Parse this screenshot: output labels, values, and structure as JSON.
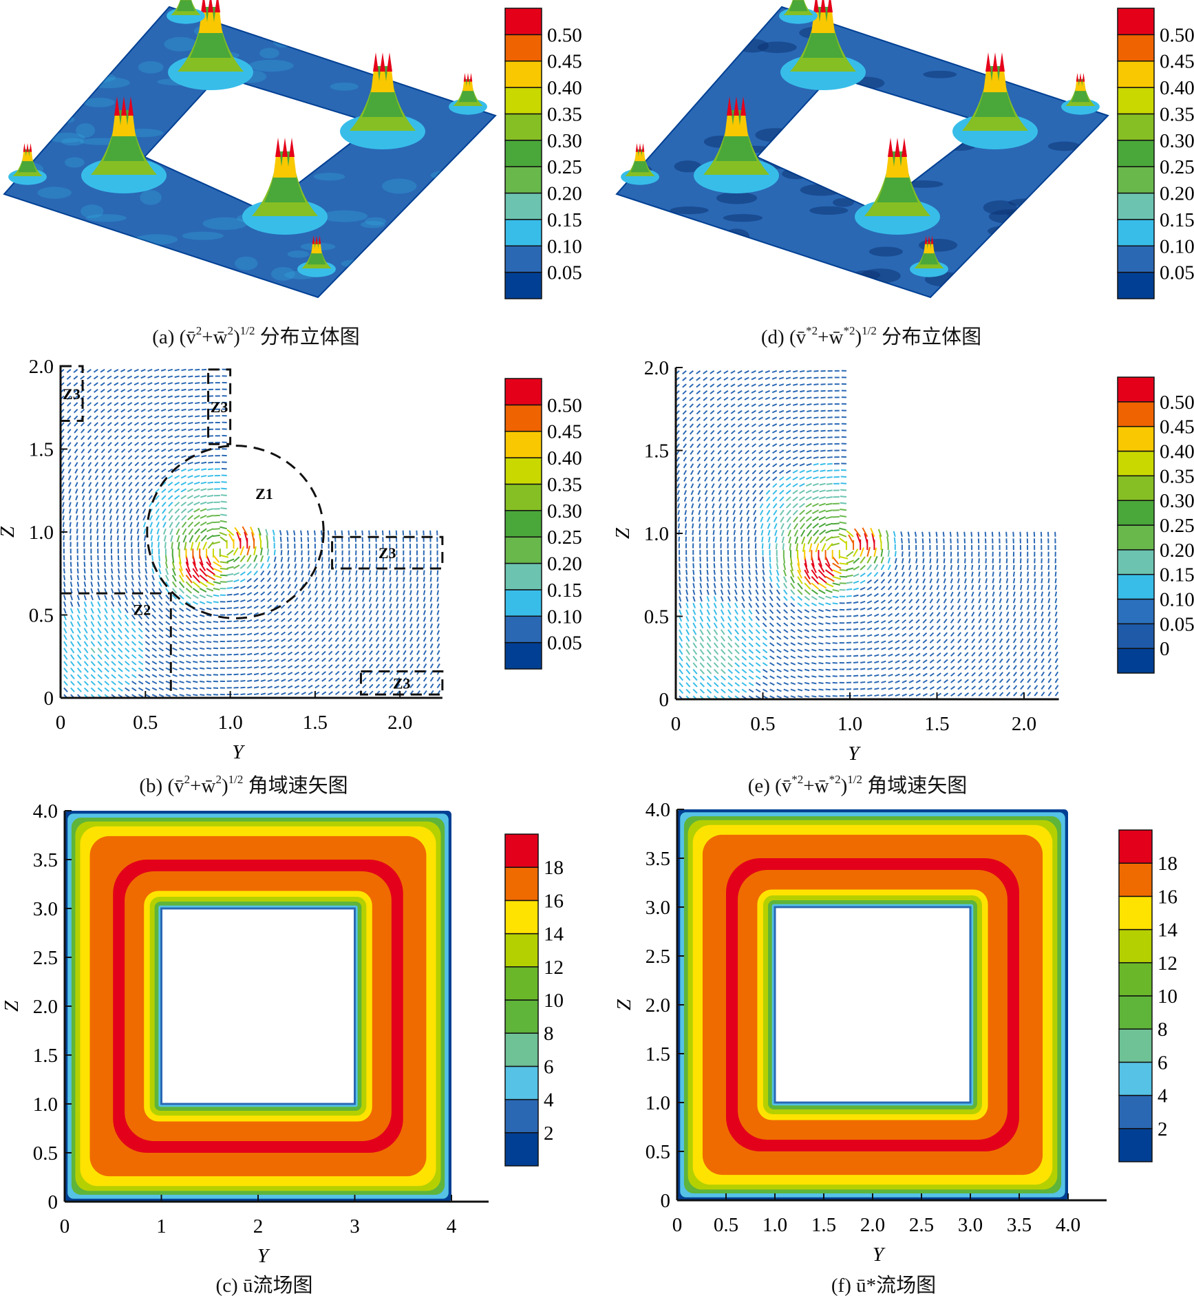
{
  "palette_small": [
    "#003f93",
    "#2a68b4",
    "#38bde9",
    "#6cc4b0",
    "#69b84c",
    "#4aa73a",
    "#86bf24",
    "#c9d900",
    "#f9c800",
    "#ef6300",
    "#e5001a"
  ],
  "palette_e": [
    "#003f93",
    "#1f5aa8",
    "#2a70bc",
    "#38bde9",
    "#6cc4b0",
    "#69b84c",
    "#4aa73a",
    "#86bf24",
    "#c9d900",
    "#f9c800",
    "#ef6300",
    "#e5001a"
  ],
  "palette_u": [
    "#003f93",
    "#2a68b4",
    "#55c2e6",
    "#6fc196",
    "#5fb43a",
    "#6ab82a",
    "#b5d000",
    "#ffe300",
    "#ef6b00",
    "#e2001a"
  ],
  "captions": [
    {
      "id": "a",
      "parts": [
        {
          "t": "(a) (v̄"
        },
        {
          "s": "2"
        },
        {
          "t": "+w̄"
        },
        {
          "s": "2"
        },
        {
          "t": ")"
        },
        {
          "s": "1/2"
        },
        {
          "t": " 分布立体图"
        }
      ]
    },
    {
      "id": "d",
      "parts": [
        {
          "t": "(d) (v̄"
        },
        {
          "s": "*2"
        },
        {
          "t": "+w̄"
        },
        {
          "s": "*2"
        },
        {
          "t": ")"
        },
        {
          "s": "1/2"
        },
        {
          "t": " 分布立体图"
        }
      ]
    },
    {
      "id": "b",
      "parts": [
        {
          "t": "(b) (v̄"
        },
        {
          "s": "2"
        },
        {
          "t": "+w̄"
        },
        {
          "s": "2"
        },
        {
          "t": ")"
        },
        {
          "s": "1/2"
        },
        {
          "t": " 角域速矢图"
        }
      ]
    },
    {
      "id": "e",
      "parts": [
        {
          "t": "(e) (v̄"
        },
        {
          "s": "*2"
        },
        {
          "t": "+w̄"
        },
        {
          "s": "*2"
        },
        {
          "t": ")"
        },
        {
          "s": "1/2"
        },
        {
          "t": " 角域速矢图"
        }
      ]
    },
    {
      "id": "c",
      "parts": [
        {
          "t": "(c) ū流场图"
        }
      ]
    },
    {
      "id": "f",
      "parts": [
        {
          "t": "(f) ū"
        },
        {
          "s": "*"
        },
        {
          "t": "流场图"
        }
      ]
    }
  ],
  "chart_data": [
    {
      "id": "a",
      "type": "surface3d",
      "title": "(v̄²+w̄²)^1/2 分布立体图",
      "colorbar": [
        "0.50",
        "0.45",
        "0.40",
        "0.35",
        "0.30",
        "0.25",
        "0.20",
        "0.15",
        "0.10",
        "0.05"
      ]
    },
    {
      "id": "d",
      "type": "surface3d",
      "title": "(v̄*²+w̄*²)^1/2 分布立体图",
      "colorbar": [
        "0.50",
        "0.45",
        "0.40",
        "0.35",
        "0.30",
        "0.25",
        "0.20",
        "0.15",
        "0.10",
        "0.05"
      ]
    },
    {
      "id": "b",
      "type": "vector",
      "title": "(v̄²+w̄²)^1/2 角域速矢图",
      "xlabel": "Y",
      "ylabel": "Z",
      "xlim": [
        0,
        2.25
      ],
      "ylim": [
        0,
        2.0
      ],
      "xticks": [
        "0",
        "0.5",
        "1.0",
        "1.5",
        "2.0"
      ],
      "yticks": [
        "0",
        "0.5",
        "1.0",
        "1.5",
        "2.0"
      ],
      "colorbar": [
        "0.50",
        "0.45",
        "0.40",
        "0.35",
        "0.30",
        "0.25",
        "0.20",
        "0.15",
        "0.10",
        "0.05"
      ],
      "regions": [
        {
          "label": "Z1",
          "kind": "circle",
          "center": [
            1.03,
            1.0
          ],
          "radius": 0.52
        },
        {
          "label": "Z2",
          "kind": "corner",
          "y": [
            0,
            0.65
          ],
          "z": [
            0,
            0.63
          ]
        },
        {
          "label": "Z3",
          "kind": "box",
          "y": [
            0,
            0.13
          ],
          "z": [
            1.67,
            2.0
          ]
        },
        {
          "label": "Z3",
          "kind": "box",
          "y": [
            0.87,
            1.0
          ],
          "z": [
            1.53,
            1.98
          ]
        },
        {
          "label": "Z3",
          "kind": "box",
          "y": [
            1.6,
            2.25
          ],
          "z": [
            0.78,
            0.97
          ]
        },
        {
          "label": "Z3",
          "kind": "box",
          "y": [
            1.77,
            2.25
          ],
          "z": [
            0.02,
            0.16
          ]
        }
      ],
      "peak_magnitude": 0.5
    },
    {
      "id": "e",
      "type": "vector",
      "title": "(v̄*²+w̄*²)^1/2 角域速矢图",
      "xlabel": "Y",
      "ylabel": "Z",
      "xlim": [
        0,
        2.2
      ],
      "ylim": [
        0,
        2.0
      ],
      "xticks": [
        "0",
        "0.5",
        "1.0",
        "1.5",
        "2.0"
      ],
      "yticks": [
        "0",
        "0.5",
        "1.0",
        "1.5",
        "2.0"
      ],
      "colorbar": [
        "0.50",
        "0.45",
        "0.40",
        "0.35",
        "0.30",
        "0.25",
        "0.20",
        "0.15",
        "0.10",
        "0.05",
        "0"
      ],
      "peak_magnitude": 0.5
    },
    {
      "id": "c",
      "type": "contour",
      "title": "ū流场图",
      "xlabel": "Y",
      "ylabel": "Z",
      "xlim": [
        0,
        4
      ],
      "ylim": [
        0,
        4
      ],
      "xticks": [
        "0",
        "1",
        "2",
        "3",
        "4"
      ],
      "yticks": [
        "0",
        "0.5",
        "1.0",
        "1.5",
        "2.0",
        "2.5",
        "3.0",
        "3.5",
        "4.0"
      ],
      "colorbar": [
        "18",
        "16",
        "14",
        "12",
        "10",
        "8",
        "6",
        "4",
        "2"
      ],
      "hole": {
        "y": [
          1,
          3
        ],
        "z": [
          1,
          3
        ]
      }
    },
    {
      "id": "f",
      "type": "contour",
      "title": "ū*流场图",
      "xlabel": "Y",
      "ylabel": "Z",
      "xlim": [
        0,
        4
      ],
      "ylim": [
        0,
        4
      ],
      "xticks": [
        "0",
        "0.5",
        "1.0",
        "1.5",
        "2.0",
        "2.5",
        "3.0",
        "3.5",
        "4.0"
      ],
      "yticks": [
        "0",
        "0.5",
        "1.0",
        "1.5",
        "2.0",
        "2.5",
        "3.0",
        "3.5",
        "4.0"
      ],
      "colorbar": [
        "18",
        "16",
        "14",
        "12",
        "10",
        "8",
        "6",
        "4",
        "2"
      ],
      "hole": {
        "y": [
          1,
          3
        ],
        "z": [
          1,
          3
        ]
      }
    }
  ]
}
